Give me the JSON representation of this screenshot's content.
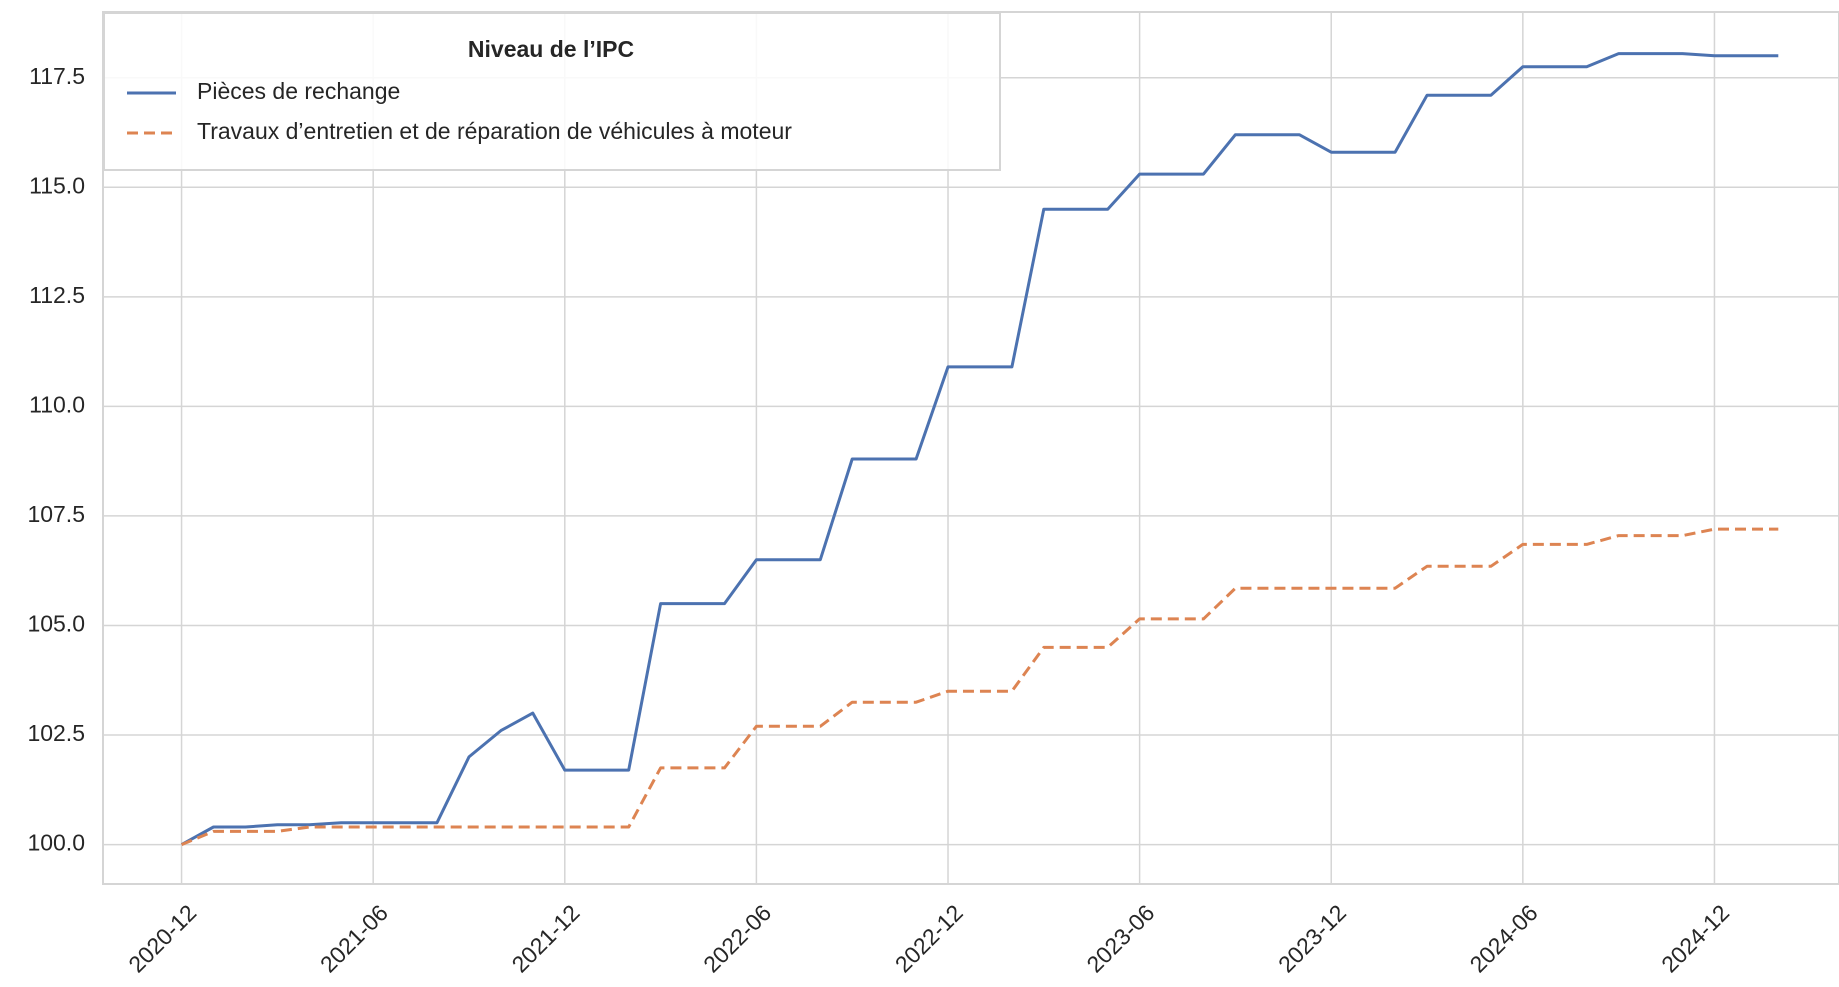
{
  "chart_data": {
    "type": "line",
    "legend_title": "Niveau de l’IPC",
    "legend": "upper left",
    "grid": true,
    "x": [
      "2020-12",
      "2021-01",
      "2021-02",
      "2021-03",
      "2021-04",
      "2021-05",
      "2021-06",
      "2021-07",
      "2021-08",
      "2021-09",
      "2021-10",
      "2021-11",
      "2021-12",
      "2022-01",
      "2022-02",
      "2022-03",
      "2022-04",
      "2022-05",
      "2022-06",
      "2022-07",
      "2022-08",
      "2022-09",
      "2022-10",
      "2022-11",
      "2022-12",
      "2023-01",
      "2023-02",
      "2023-03",
      "2023-04",
      "2023-05",
      "2023-06",
      "2023-07",
      "2023-08",
      "2023-09",
      "2023-10",
      "2023-11",
      "2023-12",
      "2024-01",
      "2024-02",
      "2024-03",
      "2024-04",
      "2024-05",
      "2024-06",
      "2024-07",
      "2024-08",
      "2024-09",
      "2024-10",
      "2024-11",
      "2024-12",
      "2025-01",
      "2025-02"
    ],
    "xticks": [
      "2020-12",
      "2021-06",
      "2021-12",
      "2022-06",
      "2022-12",
      "2023-06",
      "2023-12",
      "2024-06",
      "2024-12"
    ],
    "ylim": [
      99.1,
      119.0
    ],
    "yticks": [
      {
        "value": 100,
        "label": "100.0"
      },
      102.5,
      {
        "value": 105,
        "label": "105.0"
      },
      107.5,
      {
        "value": 110,
        "label": "110.0"
      },
      112.5,
      {
        "value": 115,
        "label": "115.0"
      },
      117.5
    ],
    "series": [
      {
        "name": "Pièces de rechange",
        "color": "#4c72b0",
        "dash": "solid",
        "values": [
          100.0,
          100.4,
          100.4,
          100.45,
          100.45,
          100.5,
          100.5,
          100.5,
          100.5,
          102.0,
          102.6,
          103.0,
          101.7,
          101.7,
          101.7,
          105.5,
          105.5,
          105.5,
          106.5,
          106.5,
          106.5,
          108.8,
          108.8,
          108.8,
          110.9,
          110.9,
          110.9,
          114.5,
          114.5,
          114.5,
          115.3,
          115.3,
          115.3,
          116.2,
          116.2,
          116.2,
          115.8,
          115.8,
          115.8,
          117.1,
          117.1,
          117.1,
          117.75,
          117.75,
          117.75,
          118.05,
          118.05,
          118.05,
          118.0,
          118.0,
          118.0
        ]
      },
      {
        "name": "Travaux d’entretien et de réparation de véhicules à moteur",
        "color": "#dd8452",
        "dash": "dashed",
        "values": [
          100.0,
          100.3,
          100.3,
          100.3,
          100.4,
          100.4,
          100.4,
          100.4,
          100.4,
          100.4,
          100.4,
          100.4,
          100.4,
          100.4,
          100.4,
          101.75,
          101.75,
          101.75,
          102.7,
          102.7,
          102.7,
          103.25,
          103.25,
          103.25,
          103.5,
          103.5,
          103.5,
          104.5,
          104.5,
          104.5,
          105.15,
          105.15,
          105.15,
          105.85,
          105.85,
          105.85,
          105.85,
          105.85,
          105.85,
          106.35,
          106.35,
          106.35,
          106.85,
          106.85,
          106.85,
          107.05,
          107.05,
          107.05,
          107.2,
          107.2,
          107.2
        ]
      }
    ]
  }
}
